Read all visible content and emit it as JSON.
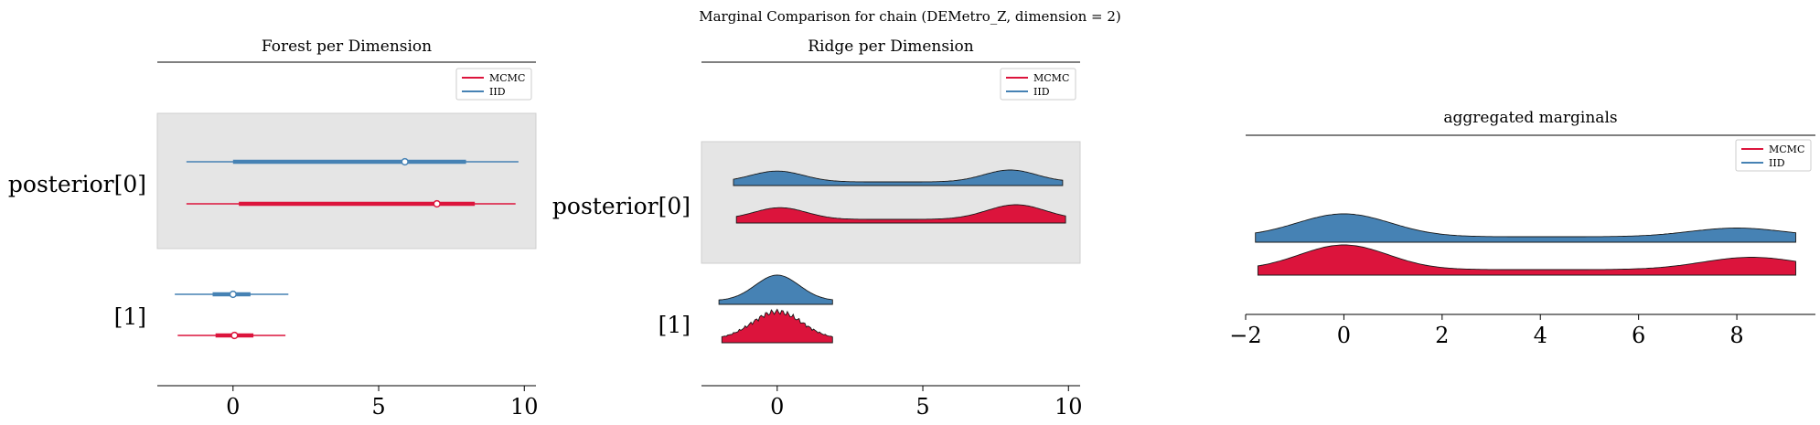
{
  "figure": {
    "suptitle": "Marginal Comparison for chain (DEMetro_Z, dimension = 2)"
  },
  "colors": {
    "mcmc": "#dc143c",
    "mcmc_dark": "#c8103a",
    "iid": "#4682b4",
    "iid_dark": "#3f75a8",
    "band": "#e5e5e5"
  },
  "chart_data": [
    {
      "type": "forest",
      "title": "Forest per Dimension",
      "xlim": [
        -2.6,
        10.4
      ],
      "xticks": [
        0,
        5,
        10
      ],
      "legend": {
        "placement": "top-right",
        "entries": [
          "MCMC",
          "IID"
        ]
      },
      "rows": [
        {
          "label": "posterior[0]",
          "shaded": true,
          "series": [
            {
              "name": "IID",
              "hdi94": [
                -1.6,
                9.8
              ],
              "iqr": [
                0.0,
                8.0
              ],
              "median": 5.9
            },
            {
              "name": "MCMC",
              "hdi94": [
                -1.6,
                9.7
              ],
              "iqr": [
                0.2,
                8.3
              ],
              "median": 7.0
            }
          ]
        },
        {
          "label": "[1]",
          "shaded": false,
          "series": [
            {
              "name": "IID",
              "hdi94": [
                -2.0,
                1.9
              ],
              "iqr": [
                -0.7,
                0.6
              ],
              "median": 0.0
            },
            {
              "name": "MCMC",
              "hdi94": [
                -1.9,
                1.8
              ],
              "iqr": [
                -0.6,
                0.7
              ],
              "median": 0.05
            }
          ]
        }
      ]
    },
    {
      "type": "ridge",
      "title": "Ridge per Dimension",
      "xlim": [
        -2.6,
        10.4
      ],
      "xticks": [
        0,
        5,
        10
      ],
      "legend": {
        "placement": "top-right",
        "entries": [
          "MCMC",
          "IID"
        ]
      },
      "rows": [
        {
          "label": "posterior[0]",
          "shaded": true,
          "series": [
            {
              "name": "IID",
              "x_range": [
                -1.5,
                9.8
              ],
              "modes": [
                {
                  "mu": 0.0,
                  "sigma": 0.9,
                  "w": 1.0
                },
                {
                  "mu": 8.0,
                  "sigma": 0.9,
                  "w": 1.1
                }
              ]
            },
            {
              "name": "MCMC",
              "x_range": [
                -1.4,
                9.9
              ],
              "modes": [
                {
                  "mu": 0.1,
                  "sigma": 0.9,
                  "w": 1.0
                },
                {
                  "mu": 8.2,
                  "sigma": 1.0,
                  "w": 1.25
                }
              ]
            }
          ]
        },
        {
          "label": "[1]",
          "shaded": false,
          "series": [
            {
              "name": "IID",
              "x_range": [
                -2.0,
                1.9
              ],
              "modes": [
                {
                  "mu": 0.0,
                  "sigma": 0.75,
                  "w": 1.0
                }
              ]
            },
            {
              "name": "MCMC",
              "x_range": [
                -1.9,
                1.9
              ],
              "modes": [
                {
                  "mu": 0.0,
                  "sigma": 0.85,
                  "w": 1.0
                }
              ],
              "jagged": true
            }
          ]
        }
      ]
    },
    {
      "type": "ridge",
      "title": "aggregated marginals",
      "xlim": [
        -2.0,
        9.6
      ],
      "xticks": [
        -2,
        0,
        2,
        4,
        6,
        8
      ],
      "xtick_labels": [
        "−2",
        "0",
        "2",
        "4",
        "6",
        "8"
      ],
      "legend": {
        "placement": "top-right",
        "entries": [
          "MCMC",
          "IID"
        ]
      },
      "series": [
        {
          "name": "IID",
          "x_range": [
            -1.8,
            9.2
          ],
          "modes": [
            {
              "mu": 0.0,
              "sigma": 0.95,
              "w": 1.0
            },
            {
              "mu": 8.0,
              "sigma": 0.95,
              "w": 0.38
            }
          ]
        },
        {
          "name": "MCMC",
          "x_range": [
            -1.75,
            9.2
          ],
          "modes": [
            {
              "mu": 0.0,
              "sigma": 0.9,
              "w": 1.0
            },
            {
              "mu": 8.3,
              "sigma": 1.0,
              "w": 0.5
            }
          ]
        }
      ]
    }
  ]
}
